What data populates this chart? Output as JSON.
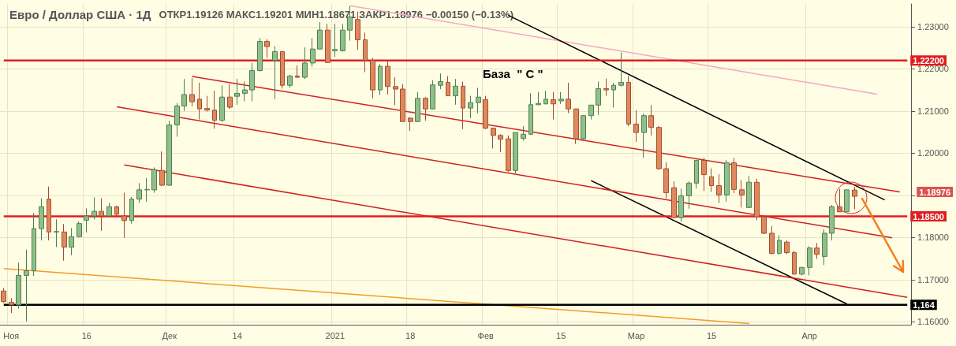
{
  "chart_data": {
    "type": "candlestick",
    "title": "Евро / Доллар США · 1Д",
    "subtitle": "ОТКР1.19126 МАКС1.19201 МИН1.18671 ЗАКР1.18976 −0.00150 (−0.13%)",
    "categories": [
      null,
      "Ноя",
      null,
      null,
      null,
      null,
      null,
      null,
      null,
      null,
      null,
      "16",
      null,
      null,
      null,
      null,
      null,
      null,
      null,
      null,
      null,
      null,
      "Дек",
      null,
      null,
      null,
      null,
      null,
      null,
      null,
      null,
      "14",
      null,
      null,
      null,
      null,
      null,
      null,
      null,
      null,
      null,
      null,
      null,
      null,
      "2021",
      null,
      null,
      null,
      null,
      null,
      null,
      null,
      null,
      null,
      "18",
      null,
      null,
      null,
      null,
      null,
      null,
      null,
      null,
      null,
      "Фев",
      null,
      null,
      null,
      null,
      null,
      null,
      null,
      null,
      null,
      "15",
      null,
      null,
      null,
      null,
      null,
      null,
      null,
      null,
      null,
      "Мар",
      null,
      null,
      null,
      null,
      null,
      null,
      null,
      null,
      null,
      "15",
      null,
      null,
      null,
      null,
      null,
      null,
      null,
      null,
      null,
      null,
      null,
      null,
      "Апр",
      null,
      null,
      null,
      null,
      null,
      null,
      null,
      null,
      null,
      null,
      null,
      null,
      null
    ],
    "ohlc": [
      [
        1.1673,
        1.168,
        1.1645,
        1.1648
      ],
      [
        1.1646,
        1.1656,
        1.1621,
        1.164
      ],
      [
        1.164,
        1.174,
        1.1631,
        1.171
      ],
      [
        1.171,
        1.1771,
        1.1601,
        1.1721
      ],
      [
        1.1721,
        1.1858,
        1.1709,
        1.1821
      ],
      [
        1.1821,
        1.1893,
        1.1793,
        1.1873
      ],
      [
        1.1891,
        1.1921,
        1.1793,
        1.1813
      ],
      [
        1.1813,
        1.1843,
        1.1777,
        1.1814
      ],
      [
        1.1813,
        1.1832,
        1.1745,
        1.1777
      ],
      [
        1.1777,
        1.1822,
        1.1758,
        1.1802
      ],
      [
        1.1802,
        1.1838,
        1.18,
        1.1833
      ],
      [
        1.1841,
        1.1869,
        1.1812,
        1.1851
      ],
      [
        1.1851,
        1.1895,
        1.1843,
        1.1862
      ],
      [
        1.1862,
        1.1893,
        1.1816,
        1.1851
      ],
      [
        1.1851,
        1.1882,
        1.1849,
        1.1873
      ],
      [
        1.1873,
        1.1875,
        1.1851,
        1.1855
      ],
      [
        1.1851,
        1.1906,
        1.1799,
        1.184
      ],
      [
        1.184,
        1.1896,
        1.1833,
        1.1891
      ],
      [
        1.1891,
        1.1929,
        1.1882,
        1.1913
      ],
      [
        1.1913,
        1.1941,
        1.1885,
        1.1914
      ],
      [
        1.1913,
        1.1966,
        1.1906,
        1.1961
      ],
      [
        1.1959,
        1.2004,
        1.1922,
        1.1924
      ],
      [
        1.1924,
        1.2077,
        1.1922,
        1.2067
      ],
      [
        1.2067,
        1.2119,
        1.2039,
        1.2112
      ],
      [
        1.2112,
        1.2176,
        1.21,
        1.2139
      ],
      [
        1.2139,
        1.2178,
        1.2111,
        1.2122
      ],
      [
        1.2128,
        1.2167,
        1.208,
        1.2105
      ],
      [
        1.2106,
        1.2136,
        1.2099,
        1.2102
      ],
      [
        1.2102,
        1.2148,
        1.2058,
        1.2078
      ],
      [
        1.2078,
        1.2161,
        1.2074,
        1.2133
      ],
      [
        1.2133,
        1.2164,
        1.2105,
        1.2109
      ],
      [
        1.2135,
        1.2176,
        1.2115,
        1.2142
      ],
      [
        1.2142,
        1.217,
        1.2123,
        1.215
      ],
      [
        1.215,
        1.2214,
        1.2123,
        1.2196
      ],
      [
        1.2196,
        1.2273,
        1.2194,
        1.2265
      ],
      [
        1.2265,
        1.227,
        1.2226,
        1.2253
      ],
      [
        1.222,
        1.2254,
        1.2128,
        1.2241
      ],
      [
        1.2241,
        1.2241,
        1.2153,
        1.2161
      ],
      [
        1.2161,
        1.2186,
        1.2155,
        1.2183
      ],
      [
        1.2183,
        1.2208,
        1.2179,
        1.218
      ],
      [
        1.218,
        1.2251,
        1.2176,
        1.2214
      ],
      [
        1.2214,
        1.2273,
        1.2205,
        1.2247
      ],
      [
        1.2247,
        1.2311,
        1.2247,
        1.2292
      ],
      [
        1.2292,
        1.2307,
        1.2214,
        1.2215
      ],
      [
        1.2243,
        1.2307,
        1.2228,
        1.2246
      ],
      [
        1.2243,
        1.2306,
        1.2241,
        1.2292
      ],
      [
        1.2292,
        1.2349,
        1.2267,
        1.2323
      ],
      [
        1.2317,
        1.2336,
        1.2245,
        1.2269
      ],
      [
        1.2269,
        1.2286,
        1.2192,
        1.222
      ],
      [
        1.222,
        1.2226,
        1.213,
        1.215
      ],
      [
        1.215,
        1.2211,
        1.2138,
        1.2206
      ],
      [
        1.2206,
        1.2221,
        1.2139,
        1.2158
      ],
      [
        1.2158,
        1.218,
        1.2114,
        1.2152
      ],
      [
        1.2152,
        1.2164,
        1.2075,
        1.2075
      ],
      [
        1.2083,
        1.2086,
        1.2053,
        1.2075
      ],
      [
        1.2075,
        1.2145,
        1.2074,
        1.213
      ],
      [
        1.213,
        1.2133,
        1.2077,
        1.2105
      ],
      [
        1.2105,
        1.2173,
        1.2104,
        1.2162
      ],
      [
        1.2161,
        1.2189,
        1.2152,
        1.217
      ],
      [
        1.2168,
        1.2183,
        1.2136,
        1.2136
      ],
      [
        1.2136,
        1.2176,
        1.2115,
        1.2159
      ],
      [
        1.2159,
        1.217,
        1.2057,
        1.2107
      ],
      [
        1.2107,
        1.2136,
        1.2083,
        1.212
      ],
      [
        1.212,
        1.2155,
        1.2095,
        1.2133
      ],
      [
        1.2127,
        1.2136,
        1.2057,
        1.2059
      ],
      [
        1.2059,
        1.2061,
        1.2011,
        1.2042
      ],
      [
        1.2042,
        1.2045,
        1.2003,
        1.2033
      ],
      [
        1.2034,
        1.2042,
        1.1955,
        1.1959
      ],
      [
        1.1959,
        1.2049,
        1.1952,
        1.2049
      ],
      [
        1.2035,
        1.2064,
        1.203,
        1.2045
      ],
      [
        1.2045,
        1.2142,
        1.2043,
        1.2115
      ],
      [
        1.2115,
        1.2145,
        1.2114,
        1.2118
      ],
      [
        1.2117,
        1.2148,
        1.2116,
        1.2128
      ],
      [
        1.2127,
        1.2145,
        1.208,
        1.2117
      ],
      [
        1.2124,
        1.2145,
        1.2117,
        1.2128
      ],
      [
        1.2128,
        1.2167,
        1.2095,
        1.2105
      ],
      [
        1.2105,
        1.2105,
        1.2022,
        1.2034
      ],
      [
        1.2034,
        1.209,
        1.2032,
        1.2089
      ],
      [
        1.2089,
        1.2114,
        1.208,
        1.2114
      ],
      [
        1.2114,
        1.217,
        1.2091,
        1.2153
      ],
      [
        1.2153,
        1.2177,
        1.2136,
        1.215
      ],
      [
        1.215,
        1.2167,
        1.2108,
        1.2161
      ],
      [
        1.2161,
        1.2239,
        1.2158,
        1.2168
      ],
      [
        1.2168,
        1.2183,
        1.2064,
        1.2069
      ],
      [
        1.2069,
        1.2102,
        1.2027,
        1.2049
      ],
      [
        1.2049,
        1.2094,
        1.1989,
        1.2089
      ],
      [
        1.2089,
        1.2114,
        1.2042,
        1.2061
      ],
      [
        1.2061,
        1.2064,
        1.1961,
        1.1963
      ],
      [
        1.1963,
        1.1978,
        1.1893,
        1.1906
      ],
      [
        1.1918,
        1.1933,
        1.1846,
        1.1847
      ],
      [
        1.1847,
        1.1916,
        1.1837,
        1.1899
      ],
      [
        1.1899,
        1.1933,
        1.1868,
        1.1929
      ],
      [
        1.1929,
        1.1983,
        1.1916,
        1.1983
      ],
      [
        1.1983,
        1.1989,
        1.191,
        1.1949
      ],
      [
        1.1944,
        1.1964,
        1.1908,
        1.1923
      ],
      [
        1.1923,
        1.195,
        1.1882,
        1.1901
      ],
      [
        1.1901,
        1.1984,
        1.1885,
        1.1977
      ],
      [
        1.1977,
        1.1989,
        1.1905,
        1.1914
      ],
      [
        1.1913,
        1.1936,
        1.1871,
        1.1901
      ],
      [
        1.1871,
        1.1946,
        1.1871,
        1.1931
      ],
      [
        1.1931,
        1.1939,
        1.1841,
        1.1849
      ],
      [
        1.1849,
        1.1849,
        1.1808,
        1.181
      ],
      [
        1.181,
        1.1827,
        1.176,
        1.1762
      ],
      [
        1.1762,
        1.1805,
        1.176,
        1.1793
      ],
      [
        1.1789,
        1.1793,
        1.176,
        1.1764
      ],
      [
        1.1764,
        1.1768,
        1.1712,
        1.1713
      ],
      [
        1.1713,
        1.1729,
        1.171,
        1.1729
      ],
      [
        1.1729,
        1.1779,
        1.171,
        1.1775
      ],
      [
        1.1775,
        1.1787,
        1.1749,
        1.176
      ],
      [
        1.1755,
        1.1819,
        1.1735,
        1.181
      ],
      [
        1.181,
        1.1877,
        1.1793,
        1.1873
      ],
      [
        1.1873,
        1.1915,
        1.186,
        1.1861
      ],
      [
        1.1861,
        1.1913,
        1.186,
        1.1913
      ],
      [
        1.19126,
        1.19201,
        1.18671,
        1.18976
      ],
      null,
      null,
      null,
      null,
      null,
      null,
      null
    ],
    "series": [
      {
        "type": "line",
        "color": "#f4a7c4",
        "values": [
          null,
          null,
          null,
          null,
          null,
          null,
          null,
          null,
          null,
          null,
          null,
          null,
          null,
          null,
          null,
          null,
          null,
          null,
          null,
          null,
          null,
          null,
          null,
          null,
          null,
          null,
          null,
          null,
          null,
          null,
          null,
          null,
          null,
          null,
          null,
          null,
          null,
          null,
          null,
          null,
          null,
          null,
          null,
          null,
          null,
          null,
          1.235,
          null,
          null,
          null,
          null,
          null,
          null,
          null,
          null,
          null,
          null,
          null,
          null,
          null,
          null,
          null,
          null,
          null,
          null,
          null,
          null,
          null,
          null,
          null,
          null,
          null,
          null,
          null,
          null,
          null,
          null,
          null,
          null,
          null,
          null,
          null,
          null,
          null,
          null,
          null,
          null,
          null,
          null,
          null,
          null,
          null,
          null,
          null,
          null,
          null,
          null,
          null,
          null,
          null,
          null,
          null,
          null,
          null,
          null,
          null,
          null,
          null,
          null,
          null,
          null,
          null,
          null,
          null,
          null,
          null,
          1.214,
          null,
          null,
          null,
          null
        ]
      },
      {
        "type": "line",
        "color": "#000000",
        "values": [
          null,
          null,
          null,
          null,
          null,
          null,
          null,
          null,
          null,
          null,
          null,
          null,
          null,
          null,
          null,
          null,
          null,
          null,
          null,
          null,
          null,
          null,
          null,
          null,
          null,
          null,
          null,
          null,
          null,
          null,
          null,
          null,
          null,
          null,
          null,
          null,
          null,
          null,
          null,
          null,
          null,
          null,
          null,
          null,
          null,
          null,
          null,
          null,
          null,
          null,
          null,
          null,
          null,
          null,
          null,
          null,
          null,
          null,
          null,
          null,
          null,
          null,
          null,
          null,
          null,
          null,
          null,
          1.2327,
          null,
          null,
          null,
          null,
          null,
          null,
          null,
          null,
          null,
          null,
          null,
          null,
          null,
          null,
          null,
          null,
          null,
          null,
          null,
          null,
          null,
          null,
          null,
          null,
          null,
          null,
          null,
          null,
          null,
          null,
          null,
          null,
          null,
          null,
          null,
          null,
          null,
          null,
          null,
          null,
          null,
          null,
          null,
          null,
          null,
          null,
          null,
          null,
          null,
          1.1889,
          null,
          null,
          null
        ]
      },
      {
        "type": "line",
        "color": "#000000",
        "values": [
          null,
          null,
          null,
          null,
          null,
          null,
          null,
          null,
          null,
          null,
          null,
          null,
          null,
          null,
          null,
          null,
          null,
          null,
          null,
          null,
          null,
          null,
          null,
          null,
          null,
          null,
          null,
          null,
          null,
          null,
          null,
          null,
          null,
          null,
          null,
          null,
          null,
          null,
          null,
          null,
          null,
          null,
          null,
          null,
          null,
          null,
          null,
          null,
          null,
          null,
          null,
          null,
          null,
          null,
          null,
          null,
          null,
          null,
          null,
          null,
          null,
          null,
          null,
          null,
          null,
          null,
          null,
          null,
          null,
          null,
          null,
          null,
          null,
          null,
          null,
          null,
          null,
          null,
          1.1935,
          null,
          null,
          null,
          null,
          null,
          null,
          null,
          null,
          null,
          null,
          null,
          null,
          null,
          null,
          null,
          null,
          null,
          null,
          null,
          null,
          null,
          null,
          null,
          null,
          null,
          null,
          null,
          null,
          null,
          null,
          null,
          null,
          null,
          1.1642,
          null,
          null,
          null,
          null,
          null,
          null,
          null,
          null
        ]
      },
      {
        "type": "line",
        "color": "#cc2222",
        "values": [
          null,
          null,
          null,
          null,
          null,
          null,
          null,
          null,
          null,
          null,
          null,
          null,
          null,
          null,
          null,
          null,
          null,
          null,
          null,
          null,
          null,
          null,
          null,
          null,
          null,
          1.2182,
          null,
          null,
          null,
          null,
          null,
          null,
          null,
          null,
          null,
          null,
          null,
          null,
          null,
          null,
          null,
          null,
          null,
          null,
          null,
          null,
          null,
          null,
          null,
          null,
          null,
          null,
          null,
          null,
          null,
          null,
          null,
          null,
          null,
          null,
          null,
          null,
          null,
          null,
          null,
          null,
          null,
          null,
          null,
          null,
          null,
          null,
          null,
          null,
          null,
          null,
          null,
          null,
          null,
          null,
          null,
          null,
          null,
          null,
          null,
          null,
          null,
          null,
          null,
          null,
          null,
          null,
          null,
          null,
          null,
          null,
          null,
          null,
          null,
          null,
          null,
          null,
          null,
          null,
          null,
          null,
          null,
          null,
          null,
          null,
          null,
          null,
          null,
          null,
          null,
          null,
          null,
          null,
          null,
          1.1908,
          null
        ]
      },
      {
        "type": "line",
        "color": "#cc2222",
        "values": [
          null,
          null,
          null,
          null,
          null,
          null,
          null,
          null,
          null,
          null,
          null,
          null,
          null,
          null,
          null,
          1.211,
          null,
          null,
          null,
          null,
          null,
          null,
          null,
          null,
          null,
          null,
          null,
          null,
          null,
          null,
          null,
          null,
          null,
          null,
          null,
          null,
          null,
          null,
          null,
          null,
          null,
          null,
          null,
          null,
          null,
          null,
          null,
          null,
          null,
          null,
          null,
          null,
          null,
          null,
          null,
          null,
          null,
          null,
          null,
          null,
          null,
          null,
          null,
          null,
          null,
          null,
          null,
          null,
          null,
          null,
          null,
          null,
          null,
          null,
          null,
          null,
          null,
          null,
          null,
          null,
          null,
          null,
          null,
          null,
          null,
          null,
          null,
          null,
          null,
          null,
          null,
          null,
          null,
          null,
          null,
          null,
          null,
          null,
          null,
          null,
          null,
          null,
          null,
          null,
          null,
          null,
          null,
          null,
          null,
          null,
          null,
          null,
          null,
          null,
          null,
          null,
          null,
          null,
          1.1799,
          null,
          null
        ]
      },
      {
        "type": "line",
        "color": "#cc2222",
        "values": [
          null,
          null,
          null,
          null,
          null,
          null,
          null,
          null,
          null,
          null,
          null,
          null,
          null,
          null,
          null,
          null,
          1.1972,
          null,
          null,
          null,
          null,
          null,
          null,
          null,
          null,
          null,
          null,
          null,
          null,
          null,
          null,
          null,
          null,
          null,
          null,
          null,
          null,
          null,
          null,
          null,
          null,
          null,
          null,
          null,
          null,
          null,
          null,
          null,
          null,
          null,
          null,
          null,
          null,
          null,
          null,
          null,
          null,
          null,
          null,
          null,
          null,
          null,
          null,
          null,
          null,
          null,
          null,
          null,
          null,
          null,
          null,
          null,
          null,
          null,
          null,
          null,
          null,
          null,
          null,
          null,
          null,
          null,
          null,
          null,
          null,
          null,
          null,
          null,
          null,
          null,
          null,
          null,
          null,
          null,
          null,
          null,
          null,
          null,
          null,
          null,
          null,
          null,
          null,
          null,
          null,
          null,
          null,
          null,
          null,
          null,
          null,
          null,
          null,
          null,
          null,
          null,
          null,
          null,
          null,
          null,
          1.1658
        ]
      },
      {
        "type": "line",
        "color": "#f39c2a",
        "values": [
          1.1726,
          null,
          null,
          null,
          null,
          null,
          null,
          null,
          null,
          null,
          null,
          null,
          null,
          null,
          null,
          null,
          null,
          null,
          null,
          null,
          null,
          null,
          null,
          null,
          null,
          null,
          null,
          null,
          null,
          null,
          null,
          null,
          null,
          null,
          null,
          null,
          null,
          null,
          null,
          null,
          null,
          null,
          null,
          null,
          null,
          null,
          null,
          null,
          null,
          null,
          null,
          null,
          null,
          null,
          null,
          null,
          null,
          null,
          null,
          null,
          null,
          null,
          null,
          null,
          null,
          null,
          null,
          null,
          null,
          null,
          null,
          null,
          null,
          null,
          null,
          null,
          null,
          null,
          null,
          null,
          null,
          null,
          null,
          null,
          null,
          null,
          null,
          null,
          null,
          null,
          null,
          null,
          null,
          null,
          null,
          null,
          null,
          null,
          null,
          1.1596,
          null,
          null,
          null,
          null,
          null,
          null,
          null,
          null,
          null,
          null,
          null,
          null,
          null,
          null,
          null,
          null,
          null,
          null,
          null,
          null,
          null
        ]
      }
    ],
    "ref_lines": [
      {
        "axis": "y",
        "value": 1.222,
        "label": "1.22200",
        "color": "#e01e1e"
      },
      {
        "axis": "y",
        "value": 1.185,
        "label": "1.18500",
        "color": "#e01e1e"
      },
      {
        "axis": "y",
        "value": 1.164,
        "label": "1,164",
        "color": "#000000"
      }
    ],
    "annotations": [
      "База  \" C \"",
      "1.18976"
    ],
    "ylim": [
      1.1593,
      1.2354
    ],
    "yticks": [
      {
        "value": 1.16,
        "label": "1.16000"
      },
      {
        "value": 1.17,
        "label": "1.17000"
      },
      {
        "value": 1.18,
        "label": "1.18000"
      },
      {
        "value": 1.19,
        "label": null
      },
      {
        "value": 1.2,
        "label": "1.20000"
      },
      {
        "value": 1.21,
        "label": "1.21000"
      },
      {
        "value": 1.22,
        "label": "1.22000"
      },
      {
        "value": 1.23,
        "label": "1.23000"
      }
    ],
    "grid": true
  }
}
